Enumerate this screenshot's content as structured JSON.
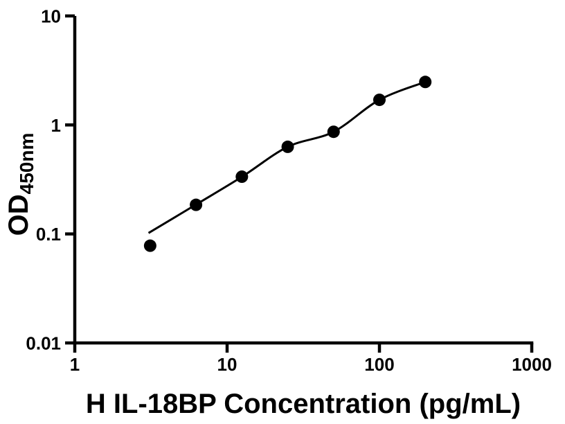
{
  "figure": {
    "background": "#ffffff"
  },
  "chart_data": {
    "type": "scatter",
    "title": "",
    "xlabel": "H IL-18BP Concentration (pg/mL)",
    "ylabel": "OD",
    "ylabel_subscript": "450nm",
    "grid": false,
    "legend": "none",
    "x_axis": {
      "scale": "log",
      "min": 1,
      "max": 1000,
      "ticks": [
        1,
        10,
        100,
        1000
      ],
      "tick_labels": [
        "1",
        "10",
        "100",
        "1000"
      ]
    },
    "y_axis": {
      "scale": "log",
      "min": 0.01,
      "max": 10,
      "ticks": [
        10,
        1,
        0.1,
        0.01
      ],
      "tick_labels": [
        "10",
        "1",
        "0.1",
        "0.01"
      ]
    },
    "series": [
      {
        "name": "standard-data-points",
        "type": "scatter",
        "marker": "filled-circle",
        "color": "#000000",
        "x": [
          3.125,
          6.25,
          12.5,
          25,
          50,
          100,
          200
        ],
        "y": [
          0.078,
          0.185,
          0.335,
          0.63,
          0.865,
          1.7,
          2.48
        ]
      },
      {
        "name": "fitted-curve",
        "type": "line",
        "color": "#000000",
        "x": [
          3.05,
          6.25,
          12.5,
          25,
          50,
          100,
          200
        ],
        "y": [
          0.102,
          0.186,
          0.334,
          0.63,
          0.865,
          1.7,
          2.48
        ]
      }
    ]
  },
  "style": {
    "axis_color": "#000000",
    "marker_color": "#000000",
    "curve_color": "#000000",
    "background_color": "#ffffff"
  }
}
